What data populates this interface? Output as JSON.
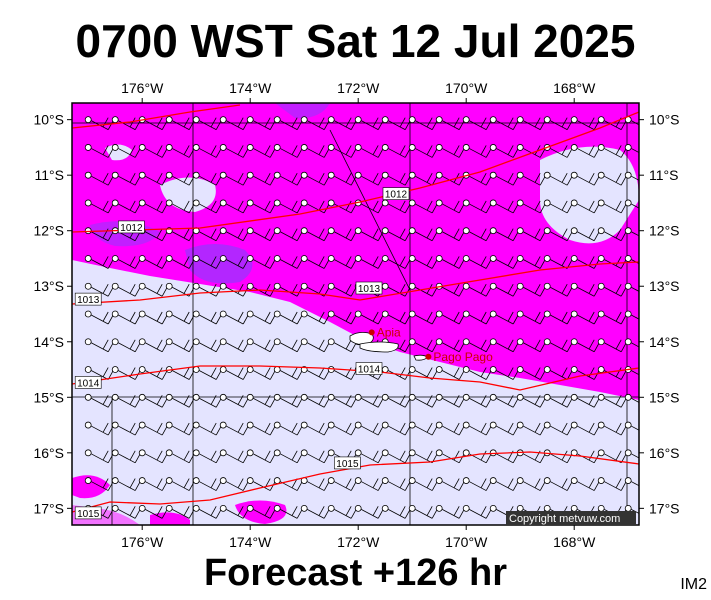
{
  "header": {
    "title": "0700 WST Sat 12 Jul 2025"
  },
  "footer": {
    "forecast": "Forecast +126 hr",
    "image_tag": "IM2"
  },
  "map": {
    "lon_range": [
      -177.3,
      -166.8
    ],
    "lat_range": [
      -17.3,
      -9.7
    ],
    "lon_ticks": [
      "176°W",
      "174°W",
      "172°W",
      "170°W",
      "168°W"
    ],
    "lat_ticks": [
      "10°S",
      "11°S",
      "12°S",
      "13°S",
      "14°S",
      "15°S",
      "16°S",
      "17°S"
    ],
    "isobars": [
      {
        "label": "1012",
        "lon": -176.2,
        "lat": -11.95
      },
      {
        "label": "1012",
        "lon": -171.3,
        "lat": -11.35
      },
      {
        "label": "1013",
        "lon": -177.0,
        "lat": -13.25
      },
      {
        "label": "1013",
        "lon": -171.8,
        "lat": -13.05
      },
      {
        "label": "1014",
        "lon": -177.0,
        "lat": -14.75
      },
      {
        "label": "1014",
        "lon": -171.8,
        "lat": -14.5
      },
      {
        "label": "1015",
        "lon": -172.2,
        "lat": -16.2
      },
      {
        "label": "1015",
        "lon": -177.0,
        "lat": -17.1
      }
    ],
    "places": [
      {
        "name": "Apia",
        "lon": -171.75,
        "lat": -13.83
      },
      {
        "name": "Pago Pago",
        "lon": -170.7,
        "lat": -14.27
      }
    ],
    "colors": {
      "land_background": "#e4e4ff",
      "strong_wind": "#ff00ff",
      "very_strong_wind": "#9933ff",
      "isobar": "#ff0000",
      "place_marker": "#cc0000"
    },
    "copyright": "Copyright metvuw.com"
  }
}
